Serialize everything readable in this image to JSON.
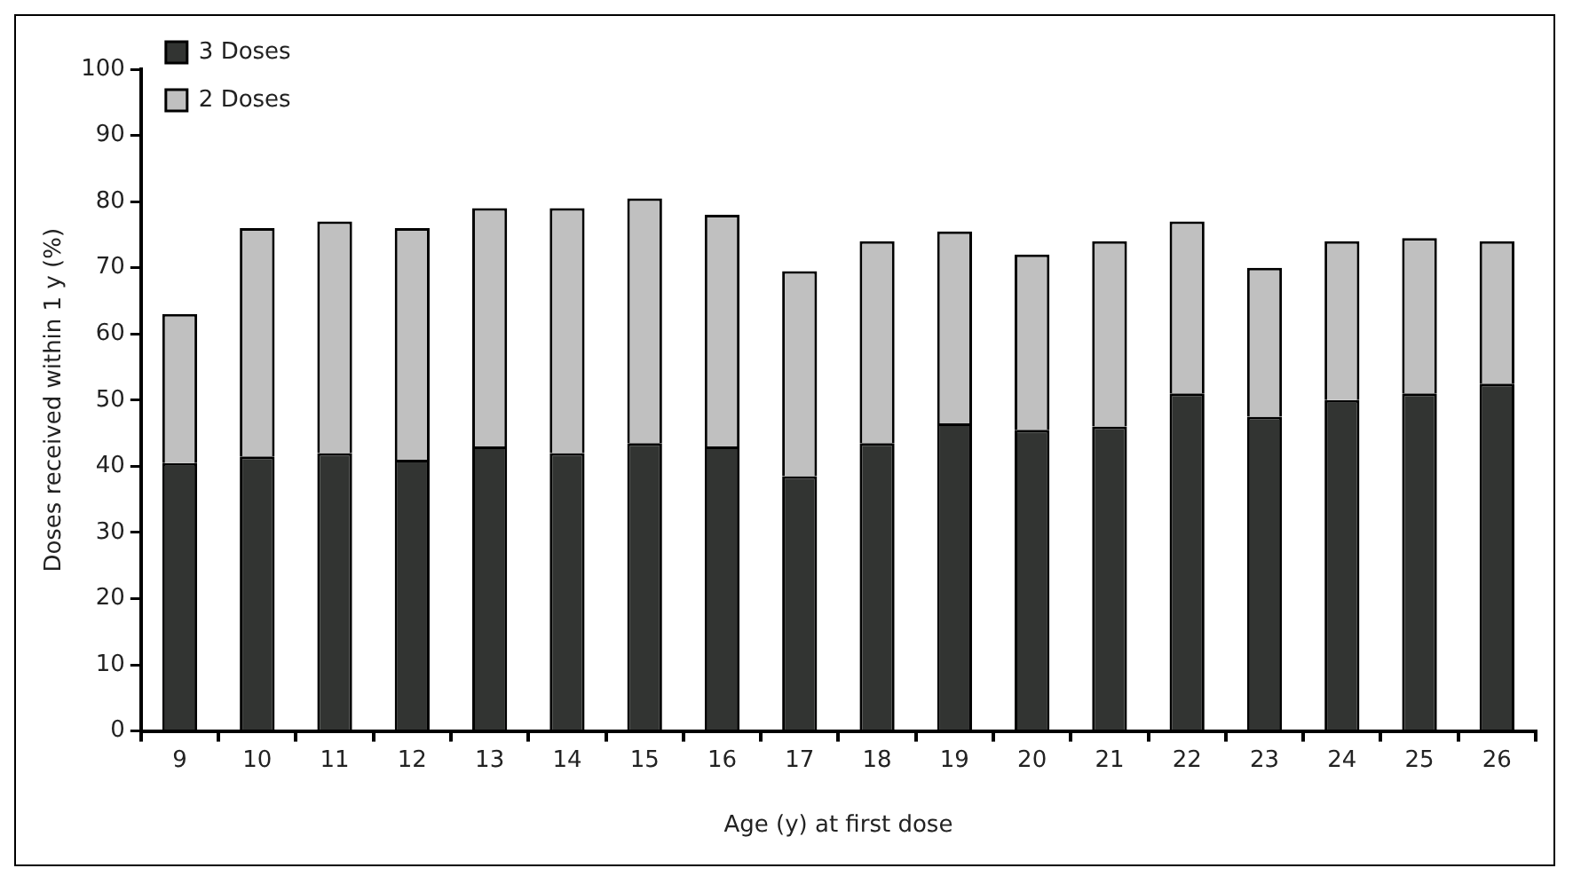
{
  "chart_data": {
    "type": "bar",
    "xlabel": "Age (y) at first dose",
    "ylabel": "Doses received within 1 y (%)",
    "categories": [
      "9",
      "10",
      "11",
      "12",
      "13",
      "14",
      "15",
      "16",
      "17",
      "18",
      "19",
      "20",
      "21",
      "22",
      "23",
      "24",
      "25",
      "26"
    ],
    "series": [
      {
        "name": "3 Doses",
        "color": "#323432",
        "values": [
          40.5,
          41.5,
          42,
          41,
          43,
          42,
          43.5,
          43,
          38.5,
          43.5,
          46.5,
          45.5,
          46,
          51,
          47.5,
          50,
          51,
          52.5
        ]
      },
      {
        "name": "2 Doses",
        "color": "#c0c0c0",
        "values": [
          22.5,
          34.5,
          35,
          35,
          36,
          37,
          37,
          35,
          31,
          30.5,
          29,
          26.5,
          28,
          26,
          22.5,
          24,
          23.5,
          21.5
        ]
      }
    ],
    "stacked": true,
    "ylim": [
      0,
      100
    ],
    "yticks": [
      0,
      10,
      20,
      30,
      40,
      50,
      60,
      70,
      80,
      90,
      100
    ],
    "grid": false,
    "legend": "top left"
  }
}
